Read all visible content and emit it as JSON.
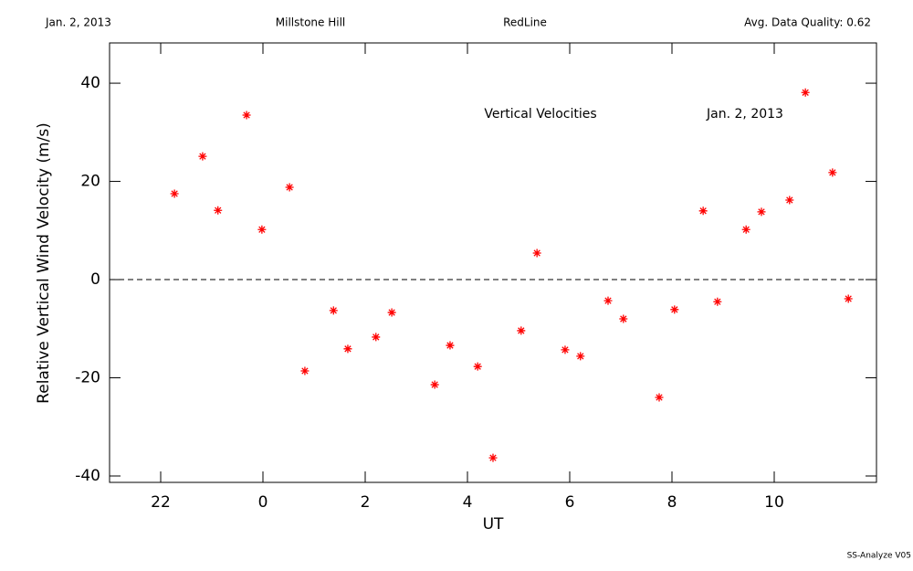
{
  "chart_data": {
    "type": "scatter",
    "header": [
      "Jan. 2, 2013",
      "Millstone Hill",
      "RedLine",
      "Avg. Data Quality: 0.62"
    ],
    "annotations": [
      "Vertical Velocities",
      "Jan. 2, 2013"
    ],
    "xlabel": "UT",
    "ylabel": "Relative Vertical Wind Velocity (m/s)",
    "footer": "SS-Analyze V05",
    "xlim": [
      -3,
      12
    ],
    "ylim": [
      -41.3,
      48.2
    ],
    "xticks": [
      {
        "value": -2,
        "label": "22"
      },
      0,
      2,
      4,
      6,
      8,
      10
    ],
    "yticks": [
      -40,
      -20,
      0,
      20,
      40
    ],
    "hline": 0,
    "color": "#ff0000",
    "x": [
      -1.73,
      -1.18,
      -0.88,
      -0.32,
      -0.02,
      0.52,
      0.82,
      1.38,
      1.66,
      2.21,
      2.52,
      3.36,
      3.66,
      4.2,
      4.5,
      5.05,
      5.36,
      5.91,
      6.21,
      6.75,
      7.05,
      7.75,
      8.05,
      8.61,
      8.89,
      9.45,
      9.75,
      10.3,
      10.61,
      11.14,
      11.45
    ],
    "values": [
      17.5,
      25.1,
      14.1,
      33.5,
      10.2,
      18.8,
      -18.6,
      -6.3,
      -14.1,
      -11.7,
      -6.7,
      -21.4,
      -13.4,
      -17.7,
      -36.3,
      -10.4,
      5.4,
      -14.3,
      -15.6,
      -4.3,
      -8.0,
      -24.0,
      -6.1,
      14.0,
      -4.5,
      10.2,
      13.8,
      16.2,
      38.1,
      21.8,
      -3.9
    ]
  }
}
